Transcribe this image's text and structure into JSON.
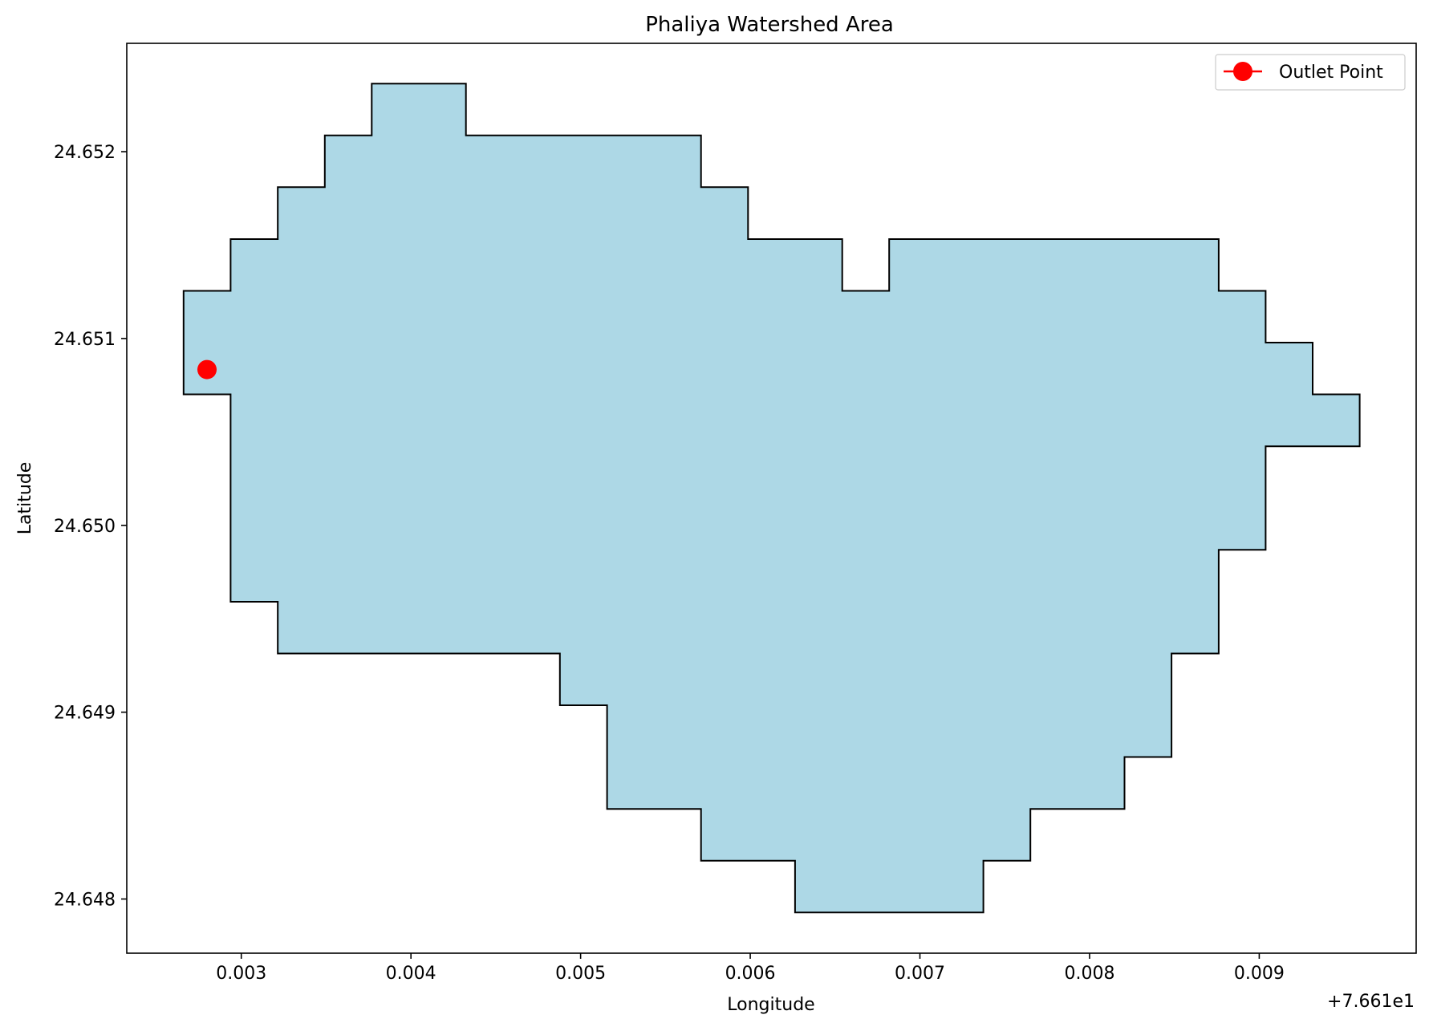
{
  "chart_data": {
    "type": "map",
    "title": "Phaliya Watershed Area",
    "xlabel": "Longitude",
    "ylabel": "Latitude",
    "x_offset_label": "+7.661e1",
    "x_offset": 76.61,
    "xlim": [
      0.002325,
      0.009925
    ],
    "ylim": [
      24.64771,
      24.65258
    ],
    "xticks": [
      0.003,
      0.004,
      0.005,
      0.006,
      0.007,
      0.008,
      0.009
    ],
    "xtick_labels": [
      "0.003",
      "0.004",
      "0.005",
      "0.006",
      "0.007",
      "0.008",
      "0.009"
    ],
    "yticks": [
      24.648,
      24.649,
      24.65,
      24.651,
      24.652
    ],
    "ytick_labels": [
      "24.648",
      "24.649",
      "24.650",
      "24.651",
      "24.652"
    ],
    "grid": false,
    "legend_position": "upper right",
    "series": [
      {
        "name": "",
        "kind": "polygon",
        "fill_color": "#add8e6",
        "edge_color": "#000000",
        "x": [
          0.00266,
          0.002937,
          0.002937,
          0.003215,
          0.003215,
          0.003492,
          0.003492,
          0.003769,
          0.003769,
          0.004324,
          0.004324,
          0.00571,
          0.00571,
          0.005987,
          0.005987,
          0.006542,
          0.006542,
          0.006819,
          0.006819,
          0.008761,
          0.008761,
          0.009038,
          0.009038,
          0.009315,
          0.009315,
          0.009592,
          0.009592,
          0.009038,
          0.009038,
          0.008761,
          0.008761,
          0.008483,
          0.008483,
          0.008206,
          0.008206,
          0.007651,
          0.007651,
          0.007374,
          0.007374,
          0.006264,
          0.006264,
          0.00571,
          0.00571,
          0.005156,
          0.005156,
          0.004878,
          0.004878,
          0.003215,
          0.003215,
          0.002937,
          0.002937,
          0.00266
        ],
        "y": [
          24.651255,
          24.651255,
          24.651532,
          24.651532,
          24.65181,
          24.65181,
          24.652087,
          24.652087,
          24.652364,
          24.652364,
          24.652087,
          24.652087,
          24.65181,
          24.65181,
          24.651532,
          24.651532,
          24.651255,
          24.651255,
          24.651532,
          24.651532,
          24.651255,
          24.651255,
          24.650978,
          24.650978,
          24.650701,
          24.650701,
          24.650423,
          24.650423,
          24.649869,
          24.649869,
          24.649314,
          24.649314,
          24.64876,
          24.64876,
          24.648482,
          24.648482,
          24.648205,
          24.648205,
          24.647928,
          24.647928,
          24.648205,
          24.648205,
          24.648482,
          24.648482,
          24.649037,
          24.649037,
          24.649314,
          24.649314,
          24.649591,
          24.649591,
          24.650701,
          24.650701
        ]
      },
      {
        "name": "Outlet Point",
        "kind": "point",
        "color": "#ff0000",
        "x": [
          0.002798
        ],
        "y": [
          24.650834
        ]
      }
    ]
  }
}
